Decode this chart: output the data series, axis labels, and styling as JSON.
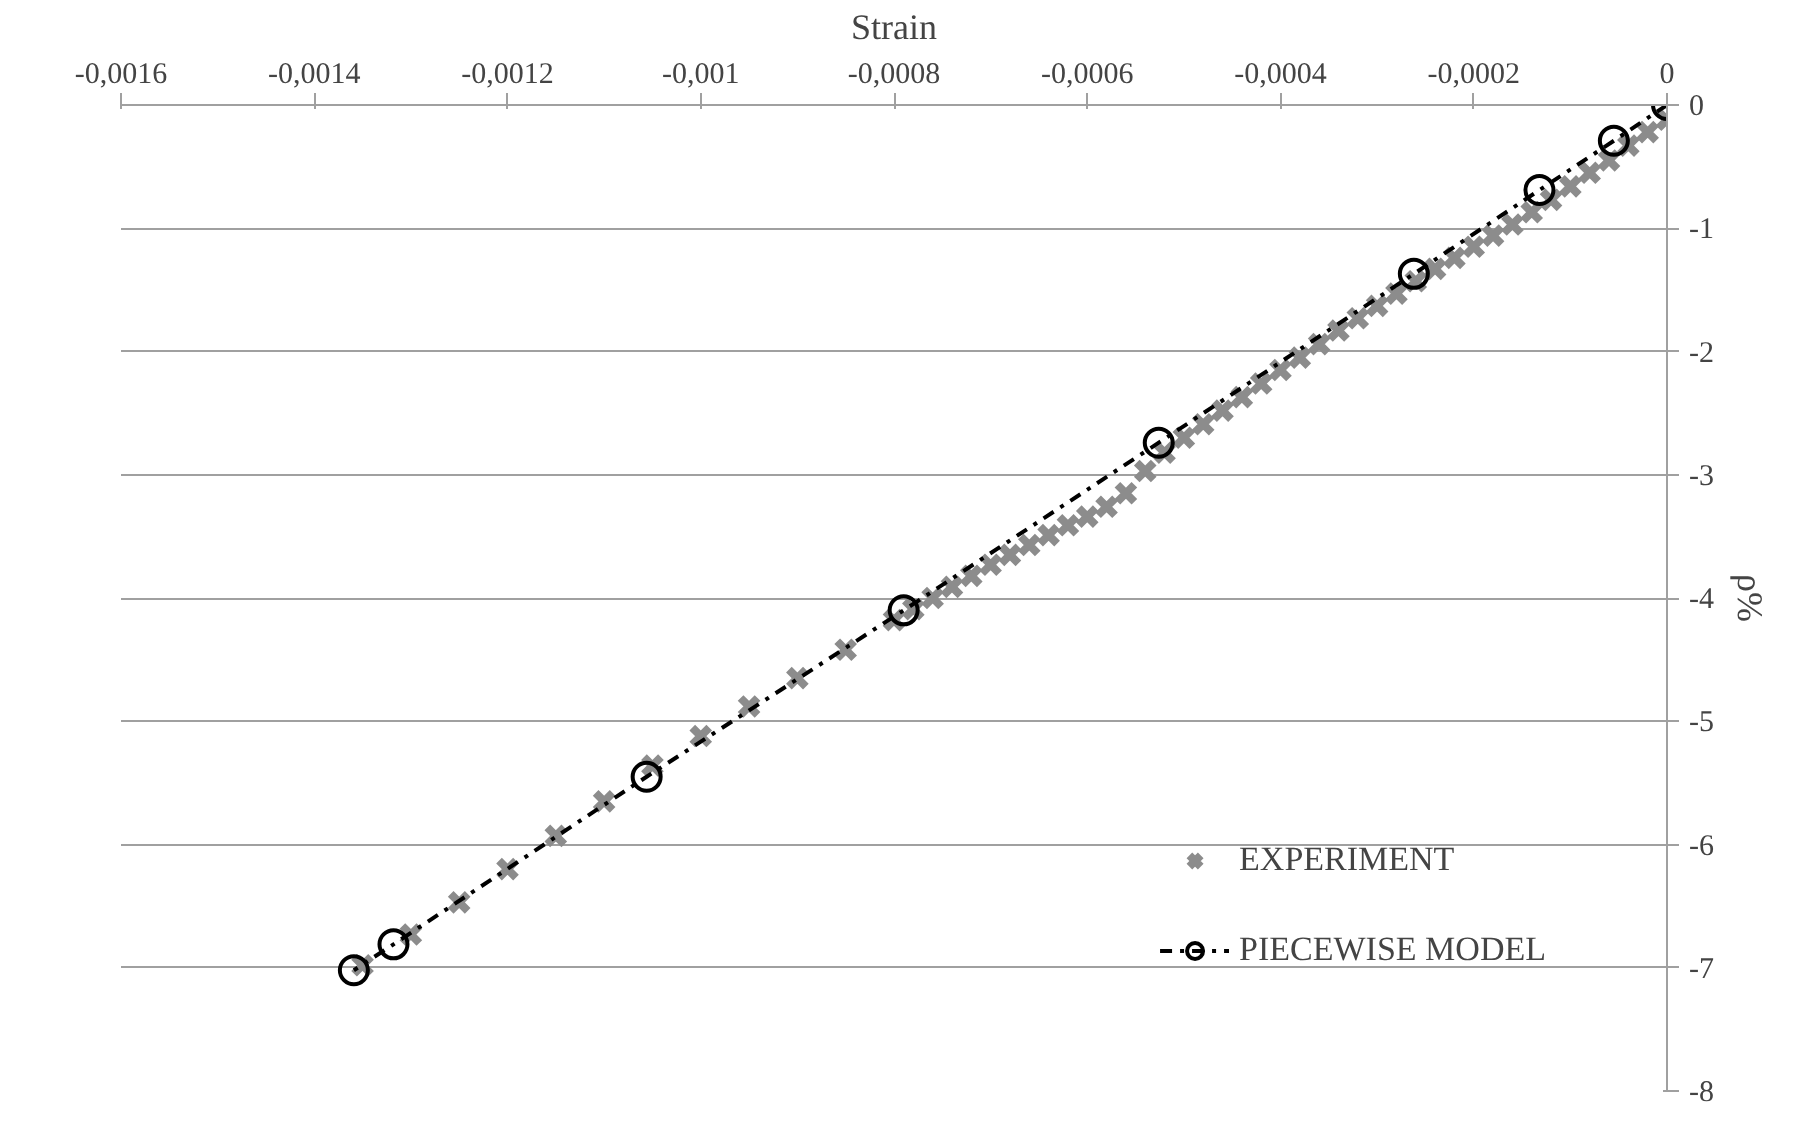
{
  "chart_data": {
    "type": "scatter",
    "xlabel": "Strain",
    "ylabel": "ρ%",
    "xlim": [
      -0.0016,
      0
    ],
    "ylim": [
      -8,
      0
    ],
    "xticks": [
      {
        "value": -0.0016,
        "label": "-0,0016"
      },
      {
        "value": -0.0014,
        "label": "-0,0014"
      },
      {
        "value": -0.0012,
        "label": "-0,0012"
      },
      {
        "value": -0.001,
        "label": "-0,001"
      },
      {
        "value": -0.0008,
        "label": "-0,0008"
      },
      {
        "value": -0.0006,
        "label": "-0,0006"
      },
      {
        "value": -0.0004,
        "label": "-0,0004"
      },
      {
        "value": -0.0002,
        "label": "-0,0002"
      },
      0
    ],
    "yticks": [
      0,
      -1,
      -2,
      -3,
      -4,
      -5,
      -6,
      -7,
      -8
    ],
    "grid": "y",
    "legend": "bottom right",
    "series": [
      {
        "name": "EXPERIMENT",
        "marker": "cross",
        "color": "#8c8c8c",
        "x": [
          0,
          -2e-05,
          -4e-05,
          -6e-05,
          -8e-05,
          -0.0001,
          -0.00012,
          -0.00014,
          -0.00016,
          -0.00018,
          -0.0002,
          -0.00022,
          -0.00024,
          -0.00026,
          -0.00028,
          -0.0003,
          -0.00032,
          -0.00034,
          -0.00036,
          -0.00038,
          -0.0004,
          -0.00042,
          -0.00044,
          -0.00046,
          -0.00048,
          -0.0005,
          -0.00052,
          -0.00054,
          -0.00056,
          -0.00058,
          -0.0006,
          -0.00062,
          -0.00064,
          -0.00066,
          -0.00068,
          -0.0007,
          -0.00072,
          -0.00074,
          -0.00076,
          -0.00078,
          -0.0008,
          -0.00085,
          -0.0009,
          -0.00095,
          -0.001,
          -0.00105,
          -0.0011,
          -0.00115,
          -0.0012,
          -0.00125,
          -0.0013,
          -0.00135
        ],
        "values": [
          -0.12,
          -0.22,
          -0.33,
          -0.45,
          -0.55,
          -0.66,
          -0.77,
          -0.87,
          -0.97,
          -1.06,
          -1.15,
          -1.24,
          -1.33,
          -1.43,
          -1.53,
          -1.63,
          -1.73,
          -1.83,
          -1.94,
          -2.05,
          -2.15,
          -2.26,
          -2.37,
          -2.48,
          -2.59,
          -2.7,
          -2.82,
          -2.97,
          -3.15,
          -3.26,
          -3.34,
          -3.41,
          -3.49,
          -3.57,
          -3.65,
          -3.73,
          -3.82,
          -3.91,
          -4.0,
          -4.09,
          -4.18,
          -4.42,
          -4.65,
          -4.88,
          -5.12,
          -5.36,
          -5.65,
          -5.93,
          -6.2,
          -6.47,
          -6.73,
          -6.98
        ]
      },
      {
        "name": "PIECEWISE MODEL",
        "type": "line",
        "marker": "circle",
        "line_style": "dashed",
        "color": "#000000",
        "x": [
          0,
          -5.5e-05,
          -0.000132,
          -0.000262,
          -0.000526,
          -0.00079,
          -0.001056,
          -0.001318,
          -0.001359
        ],
        "values": [
          0,
          -0.29,
          -0.69,
          -1.37,
          -2.74,
          -4.1,
          -5.45,
          -6.81,
          -7.02
        ]
      }
    ]
  }
}
